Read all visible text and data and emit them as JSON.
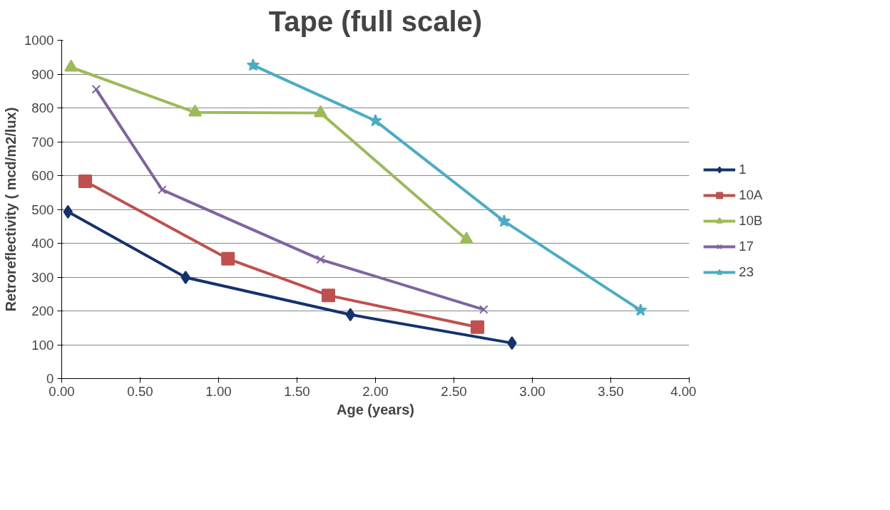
{
  "chart_data": {
    "type": "line",
    "title": "Tape (full scale)",
    "xlabel": "Age (years)",
    "ylabel": "Retroreflectivity ( mcd/m2/lux)",
    "xlim": [
      0,
      4
    ],
    "xticks": [
      {
        "value": 0,
        "label": "0.00"
      },
      {
        "value": 0.5,
        "label": "0.50"
      },
      {
        "value": 1,
        "label": "1.00"
      },
      {
        "value": 1.5,
        "label": "1.50"
      },
      {
        "value": 2,
        "label": "2.00"
      },
      {
        "value": 2.5,
        "label": "2.50"
      },
      {
        "value": 3,
        "label": "3.00"
      },
      {
        "value": 3.5,
        "label": "3.50"
      },
      {
        "value": 4,
        "label": "4.00"
      }
    ],
    "ylim": [
      0,
      1000
    ],
    "yticks": [
      0,
      100,
      200,
      300,
      400,
      500,
      600,
      700,
      800,
      900,
      1000
    ],
    "grid": "y",
    "legend": "right",
    "series": [
      {
        "name": "1",
        "color": "#14326e",
        "marker": "diamond",
        "x": [
          0.04,
          0.79,
          1.84,
          2.87
        ],
        "values": [
          493,
          299,
          189,
          105
        ]
      },
      {
        "name": "10A",
        "color": "#c0504d",
        "marker": "square",
        "x": [
          0.15,
          1.06,
          1.7,
          2.65
        ],
        "values": [
          583,
          354,
          246,
          152
        ]
      },
      {
        "name": "10B",
        "color": "#9bbb59",
        "marker": "triangle",
        "x": [
          0.06,
          0.85,
          1.65,
          2.58
        ],
        "values": [
          920,
          787,
          785,
          411
        ]
      },
      {
        "name": "17",
        "color": "#8064a2",
        "marker": "cross",
        "x": [
          0.22,
          0.64,
          1.65,
          2.69
        ],
        "values": [
          855,
          558,
          352,
          204
        ]
      },
      {
        "name": "23",
        "color": "#4bacc6",
        "marker": "star",
        "x": [
          1.22,
          2.0,
          2.82,
          3.69
        ],
        "values": [
          926,
          762,
          465,
          202
        ]
      }
    ]
  }
}
